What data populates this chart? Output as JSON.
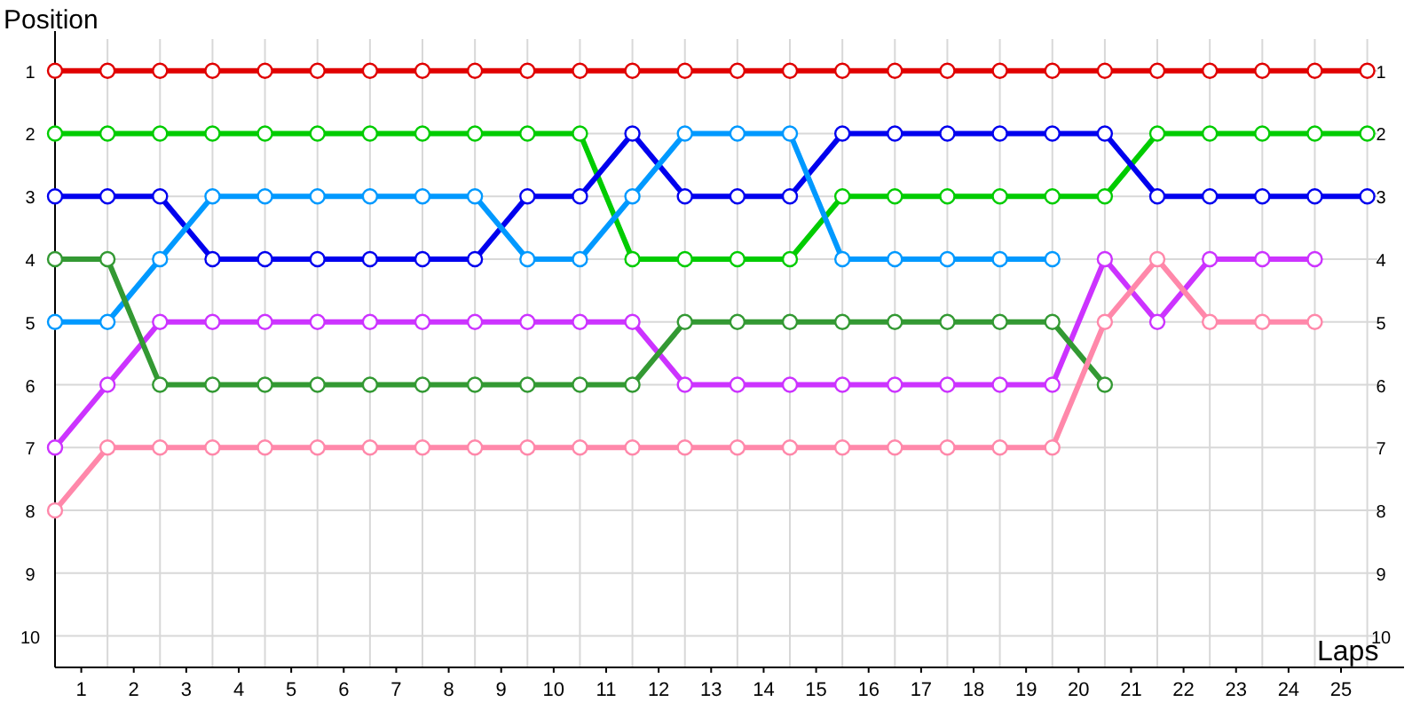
{
  "chart_data": {
    "type": "line",
    "xlabel": "Laps",
    "ylabel": "Position",
    "x": [
      0,
      1,
      2,
      3,
      4,
      5,
      6,
      7,
      8,
      9,
      10,
      11,
      12,
      13,
      14,
      15,
      16,
      17,
      18,
      19,
      20,
      21,
      22,
      23,
      24,
      25
    ],
    "series": [
      {
        "color": "#e00000",
        "values": [
          1,
          1,
          1,
          1,
          1,
          1,
          1,
          1,
          1,
          1,
          1,
          1,
          1,
          1,
          1,
          1,
          1,
          1,
          1,
          1,
          1,
          1,
          1,
          1,
          1,
          1
        ]
      },
      {
        "color": "#00cc00",
        "values": [
          2,
          2,
          2,
          2,
          2,
          2,
          2,
          2,
          2,
          2,
          2,
          4,
          4,
          4,
          4,
          3,
          3,
          3,
          3,
          3,
          3,
          2,
          2,
          2,
          2,
          2
        ]
      },
      {
        "color": "#0000ee",
        "values": [
          3,
          3,
          3,
          4,
          4,
          4,
          4,
          4,
          4,
          3,
          3,
          2,
          3,
          3,
          3,
          2,
          2,
          2,
          2,
          2,
          2,
          3,
          3,
          3,
          3,
          3
        ]
      },
      {
        "color": "#0099ff",
        "values": [
          5,
          5,
          4,
          3,
          3,
          3,
          3,
          3,
          3,
          4,
          4,
          3,
          2,
          2,
          2,
          4,
          4,
          4,
          4,
          4,
          null,
          null,
          null,
          null,
          null,
          null
        ]
      },
      {
        "color": "#cc33ff",
        "values": [
          7,
          6,
          5,
          5,
          5,
          5,
          5,
          5,
          5,
          5,
          5,
          5,
          6,
          6,
          6,
          6,
          6,
          6,
          6,
          6,
          4,
          5,
          4,
          4,
          4,
          null
        ]
      },
      {
        "color": "#339933",
        "values": [
          4,
          4,
          6,
          6,
          6,
          6,
          6,
          6,
          6,
          6,
          6,
          6,
          5,
          5,
          5,
          5,
          5,
          5,
          5,
          5,
          6,
          null,
          null,
          null,
          null,
          null
        ]
      },
      {
        "color": "#ff88aa",
        "values": [
          8,
          7,
          7,
          7,
          7,
          7,
          7,
          7,
          7,
          7,
          7,
          7,
          7,
          7,
          7,
          7,
          7,
          7,
          7,
          7,
          5,
          4,
          5,
          5,
          5,
          null
        ]
      }
    ],
    "xlim": [
      0,
      25.7
    ],
    "xticks": [
      {
        "value": 0.5,
        "label": "1"
      },
      {
        "value": 1.5,
        "label": "2"
      },
      {
        "value": 2.5,
        "label": "3"
      },
      {
        "value": 3.5,
        "label": "4"
      },
      {
        "value": 4.5,
        "label": "5"
      },
      {
        "value": 5.5,
        "label": "6"
      },
      {
        "value": 6.5,
        "label": "7"
      },
      {
        "value": 7.5,
        "label": "8"
      },
      {
        "value": 8.5,
        "label": "9"
      },
      {
        "value": 9.5,
        "label": "10"
      },
      {
        "value": 10.5,
        "label": "11"
      },
      {
        "value": 11.5,
        "label": "12"
      },
      {
        "value": 12.5,
        "label": "13"
      },
      {
        "value": 13.5,
        "label": "14"
      },
      {
        "value": 14.5,
        "label": "15"
      },
      {
        "value": 15.5,
        "label": "16"
      },
      {
        "value": 16.5,
        "label": "17"
      },
      {
        "value": 17.5,
        "label": "18"
      },
      {
        "value": 18.5,
        "label": "19"
      },
      {
        "value": 19.5,
        "label": "20"
      },
      {
        "value": 20.5,
        "label": "21"
      },
      {
        "value": 21.5,
        "label": "22"
      },
      {
        "value": 22.5,
        "label": "23"
      },
      {
        "value": 23.5,
        "label": "24"
      },
      {
        "value": 24.5,
        "label": "25"
      }
    ],
    "ylim": [
      10.5,
      0.1
    ],
    "yticks": [
      1,
      2,
      3,
      4,
      5,
      6,
      7,
      8,
      9,
      10
    ],
    "y2lim": [
      10.5,
      0.1
    ],
    "y2ticks": [
      1,
      2,
      3,
      4,
      5,
      6,
      7,
      8,
      9,
      10
    ],
    "grid": true,
    "marker": "circle",
    "line_style": "solid"
  }
}
